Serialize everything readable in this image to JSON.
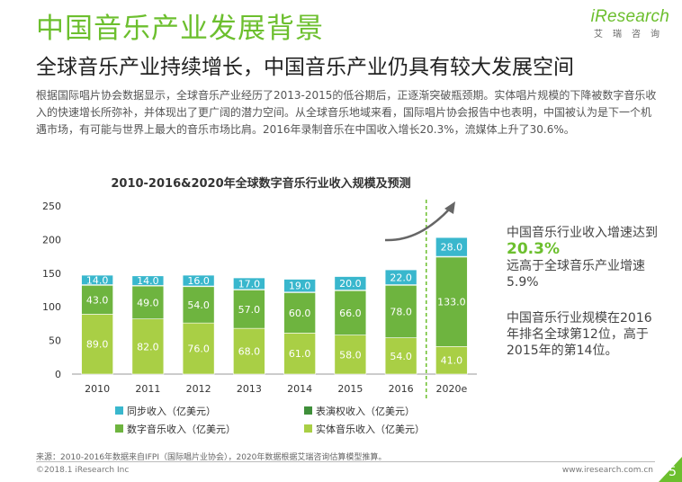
{
  "header": {
    "title": "中国音乐产业发展背景",
    "subtitle": "全球音乐产业持续增长，中国音乐产业仍具有较大发展空间",
    "logo_main": "iResearch",
    "logo_sub": "艾瑞咨询"
  },
  "body_text": "根据国际唱片协会数据显示，全球音乐产业经历了2013-2015的低谷期后，正逐渐突破瓶颈期。实体唱片规模的下降被数字音乐收入的快速增长所弥补，并体现出了更广阔的潜力空间。从全球音乐地域来看，国际唱片协会报告中也表明，中国被认为是下一个机遇市场，有可能与世界上最大的音乐市场比肩。2016年录制音乐在中国收入增长20.3%，流媒体上升了30.6%。",
  "notes": {
    "growth_pre": "中国音乐行业收入增速达到",
    "growth_value": "20.3%",
    "growth_post": "远高于全球音乐产业增速5.9%",
    "rank_text": "中国音乐行业规模在2016年排名全球第12位，高于2015年的第14位。"
  },
  "chart_data": {
    "type": "bar",
    "stacked": true,
    "title": "2010-2016&2020年全球数字音乐行业收入规模及预测",
    "categories": [
      "2010",
      "2011",
      "2012",
      "2013",
      "2014",
      "2015",
      "2016",
      "2020e"
    ],
    "ylim": [
      0,
      250
    ],
    "yticks": [
      0,
      50,
      100,
      150,
      200,
      250
    ],
    "series": [
      {
        "name": "实体音乐收入（亿美元）",
        "color": "#a9cf45",
        "values": [
          89.0,
          82.0,
          76.0,
          68.0,
          61.0,
          58.0,
          54.0,
          41.0
        ]
      },
      {
        "name": "数字音乐收入（亿美元）",
        "color": "#6eb43f",
        "values": [
          43.0,
          49.0,
          54.0,
          57.0,
          60.0,
          66.0,
          78.0,
          133.0
        ]
      },
      {
        "name": "表演权收入（亿美元）",
        "color": "#3f8f3a",
        "values": [
          1.0,
          1.0,
          1.0,
          1.0,
          1.0,
          1.0,
          1.0,
          1.0
        ]
      },
      {
        "name": "同步收入（亿美元）",
        "color": "#39b7cd",
        "values": [
          14.0,
          14.0,
          16.0,
          17.0,
          19.0,
          20.0,
          22.0,
          28.0
        ]
      }
    ],
    "labels_shown_for": [
      "实体音乐收入（亿美元）",
      "数字音乐收入（亿美元）",
      "同步收入（亿美元）"
    ],
    "legend_position": "bottom",
    "grid": false
  },
  "footer": {
    "source": "来源：2010-2016年数据来自IFPI（国际唱片业协会），2020年数据根据艾瑞咨询估算模型推算。",
    "copyright": "©2018.1 iResearch Inc",
    "website": "www.iresearch.com.cn",
    "page": "5"
  }
}
